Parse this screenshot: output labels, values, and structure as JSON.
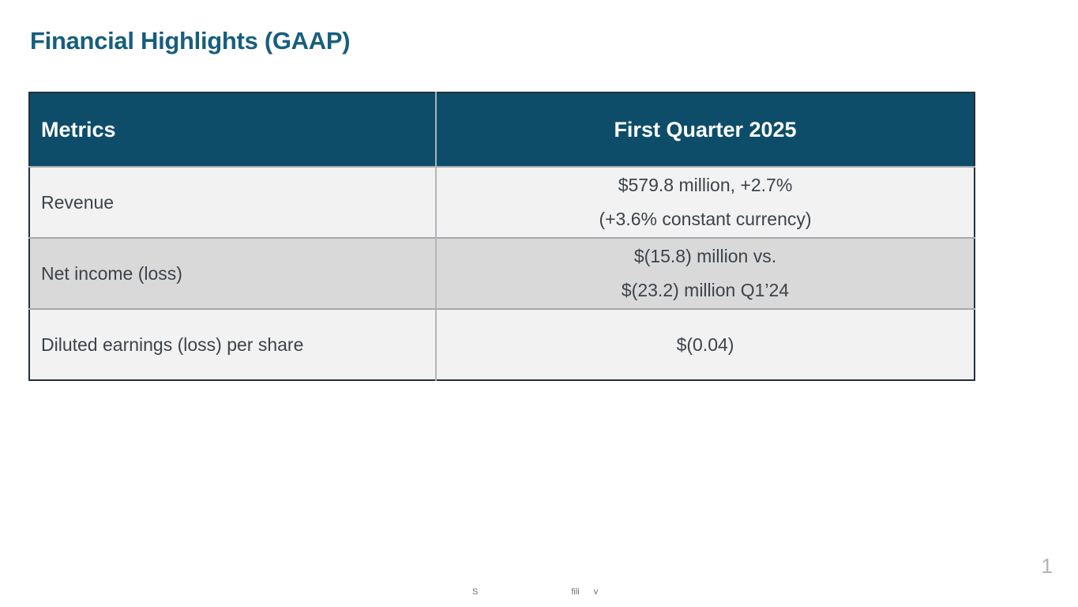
{
  "slide": {
    "title": "Financial Highlights (GAAP)",
    "page_number": "1"
  },
  "table": {
    "columns": [
      {
        "label": "Metrics"
      },
      {
        "label": "First Quarter 2025"
      }
    ],
    "rows": [
      {
        "metric": "Revenue",
        "value_line1": "$579.8 million, +2.7%",
        "value_line2": "(+3.6% constant currency)"
      },
      {
        "metric": "Net income (loss)",
        "value_line1": "$(15.8) million vs.",
        "value_line2": "$(23.2) million Q1’24"
      },
      {
        "metric": "Diluted earnings (loss) per share",
        "value_line1": "$(0.04)",
        "value_line2": ""
      }
    ]
  },
  "footer": {
    "fragments": [
      "S",
      "fili",
      "y"
    ]
  },
  "colors": {
    "title_text": "#175e7d",
    "header_background": "#0d4d6a",
    "header_text": "#ffffff",
    "row_light_background": "#f2f2f2",
    "row_dark_background": "#d9d9d9",
    "cell_text": "#3c434a",
    "outer_border": "#23313d",
    "page_number_text": "#b3b3b3"
  }
}
